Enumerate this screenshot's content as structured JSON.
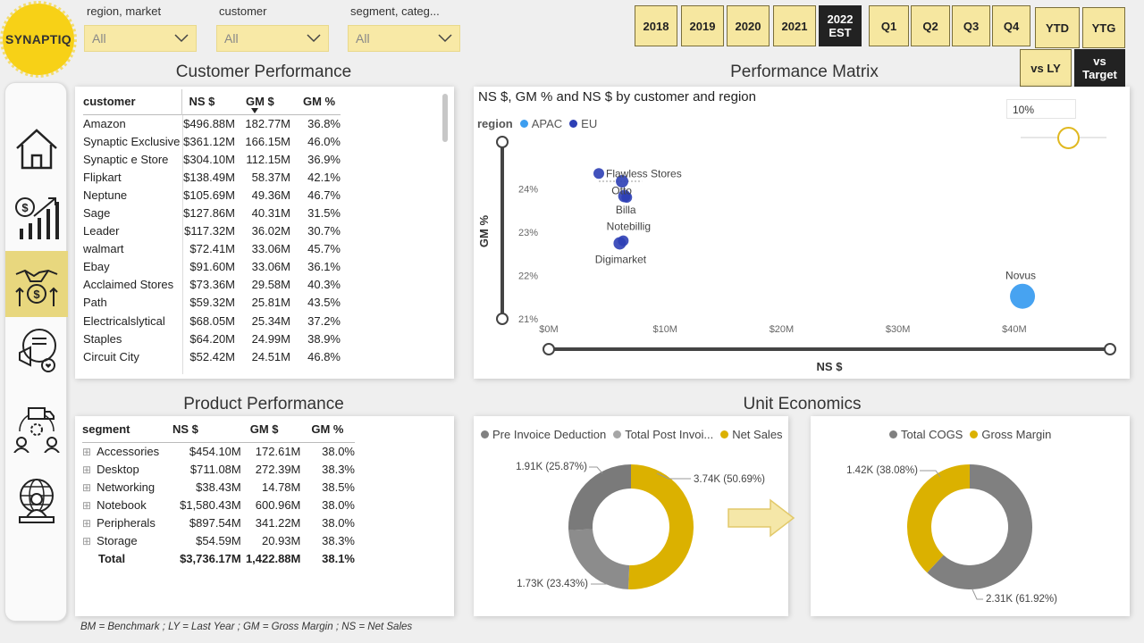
{
  "logo": "SYNAPTIQ",
  "slicers": [
    {
      "label": "region, market",
      "value": "All"
    },
    {
      "label": "customer",
      "value": "All"
    },
    {
      "label": "segment, categ...",
      "value": "All"
    }
  ],
  "years": [
    "2018",
    "2019",
    "2020",
    "2021"
  ],
  "year_selected": {
    "line1": "2022",
    "line2": "EST"
  },
  "quarters": [
    "Q1",
    "Q2",
    "Q3",
    "Q4"
  ],
  "ytd": "YTD",
  "ytg": "YTG",
  "vs_ly": "vs LY",
  "vs_target": {
    "line1": "vs",
    "line2": "Target"
  },
  "nav": [
    "home-icon",
    "finance-growth-icon",
    "handshake-money-icon",
    "marketing-icon",
    "supply-chain-icon",
    "global-user-icon"
  ],
  "customer_performance": {
    "title": "Customer Performance",
    "headers": [
      "customer",
      "NS $",
      "GM $",
      "GM %"
    ],
    "rows": [
      [
        "Amazon",
        "$496.88M",
        "182.77M",
        "36.8%"
      ],
      [
        "Synaptic Exclusive",
        "$361.12M",
        "166.15M",
        "46.0%"
      ],
      [
        "Synaptic e Store",
        "$304.10M",
        "112.15M",
        "36.9%"
      ],
      [
        "Flipkart",
        "$138.49M",
        "58.37M",
        "42.1%"
      ],
      [
        "Neptune",
        "$105.69M",
        "49.36M",
        "46.7%"
      ],
      [
        "Sage",
        "$127.86M",
        "40.31M",
        "31.5%"
      ],
      [
        "Leader",
        "$117.32M",
        "36.02M",
        "30.7%"
      ],
      [
        "walmart",
        "$72.41M",
        "33.06M",
        "45.7%"
      ],
      [
        "Ebay",
        "$91.60M",
        "33.06M",
        "36.1%"
      ],
      [
        "Acclaimed Stores",
        "$73.36M",
        "29.58M",
        "40.3%"
      ],
      [
        "Path",
        "$59.32M",
        "25.81M",
        "43.5%"
      ],
      [
        "Electricalslytical",
        "$68.05M",
        "25.34M",
        "37.2%"
      ],
      [
        "Staples",
        "$64.20M",
        "24.99M",
        "38.9%"
      ],
      [
        "Circuit City",
        "$52.42M",
        "24.51M",
        "46.8%"
      ]
    ]
  },
  "performance_matrix": {
    "title": "Performance Matrix",
    "subtitle": "NS $, GM % and NS $ by customer and region",
    "legend_label": "region",
    "threshold_value": "10%"
  },
  "product_performance": {
    "title": "Product Performance",
    "headers": [
      "segment",
      "NS $",
      "GM $",
      "GM %"
    ],
    "rows": [
      [
        "Accessories",
        "$454.10M",
        "172.61M",
        "38.0%"
      ],
      [
        "Desktop",
        "$711.08M",
        "272.39M",
        "38.3%"
      ],
      [
        "Networking",
        "$38.43M",
        "14.78M",
        "38.5%"
      ],
      [
        "Notebook",
        "$1,580.43M",
        "600.96M",
        "38.0%"
      ],
      [
        "Peripherals",
        "$897.54M",
        "341.22M",
        "38.0%"
      ],
      [
        "Storage",
        "$54.59M",
        "20.93M",
        "38.3%"
      ]
    ],
    "total": [
      "Total",
      "$3,736.17M",
      "1,422.88M",
      "38.1%"
    ],
    "expand_glyph": "⊞"
  },
  "unit_economics": {
    "title": "Unit Economics"
  },
  "footnote": "BM = Benchmark ; LY = Last Year ; GM = Gross Margin ; NS = Net Sales",
  "chart_data": [
    {
      "type": "scatter",
      "title": "NS $, GM % and NS $ by customer and region",
      "xlabel": "NS $",
      "ylabel": "GM %",
      "xlim": [
        0,
        43
      ],
      "ylim": [
        21,
        24.5
      ],
      "x_ticks": [
        "$0M",
        "$10M",
        "$20M",
        "$30M",
        "$40M"
      ],
      "y_ticks": [
        "21%",
        "22%",
        "23%",
        "24%"
      ],
      "legend": [
        "APAC",
        "EU"
      ],
      "colors": {
        "APAC": "#3d9ef0",
        "EU": "#2d3fb5"
      },
      "points": [
        {
          "label": "Flawless Stores",
          "region": "EU",
          "x": 4.3,
          "y": 24.35,
          "size": 6
        },
        {
          "label": "",
          "region": "EU",
          "x": 6.3,
          "y": 24.17,
          "size": 7
        },
        {
          "label": "Otto",
          "region": "EU",
          "x": 6.5,
          "y": 23.83,
          "size": 7
        },
        {
          "label": "Billa",
          "region": "EU",
          "x": 6.7,
          "y": 23.8,
          "size": 6
        },
        {
          "label": "Notebillig",
          "region": "EU",
          "x": 6.4,
          "y": 22.8,
          "size": 6
        },
        {
          "label": "Digimarket",
          "region": "EU",
          "x": 6.1,
          "y": 22.74,
          "size": 7
        },
        {
          "label": "Novus",
          "region": "APAC",
          "x": 40.7,
          "y": 21.52,
          "size": 14
        }
      ]
    },
    {
      "type": "pie",
      "legend": [
        "Pre Invoice Deduction",
        "Total Post Invoi...",
        "Net Sales"
      ],
      "colors": [
        "#808080",
        "#a6a6a6",
        "#dbb100"
      ],
      "slices": [
        {
          "name": "Net Sales",
          "value": 3740,
          "label": "3.74K (50.69%)",
          "color": "#dbb100"
        },
        {
          "name": "Total Post Invoice",
          "value": 1730,
          "label": "1.73K (23.43%)",
          "color": "#8c8c8c"
        },
        {
          "name": "Pre Invoice Deduction",
          "value": 1910,
          "label": "1.91K (25.87%)",
          "color": "#7a7a7a"
        }
      ]
    },
    {
      "type": "pie",
      "legend": [
        "Total COGS",
        "Gross Margin"
      ],
      "colors": [
        "#808080",
        "#dbb100"
      ],
      "slices": [
        {
          "name": "Total COGS",
          "value": 2310,
          "label": "2.31K (61.92%)",
          "color": "#808080"
        },
        {
          "name": "Gross Margin",
          "value": 1420,
          "label": "1.42K (38.08%)",
          "color": "#dbb100"
        }
      ]
    }
  ]
}
